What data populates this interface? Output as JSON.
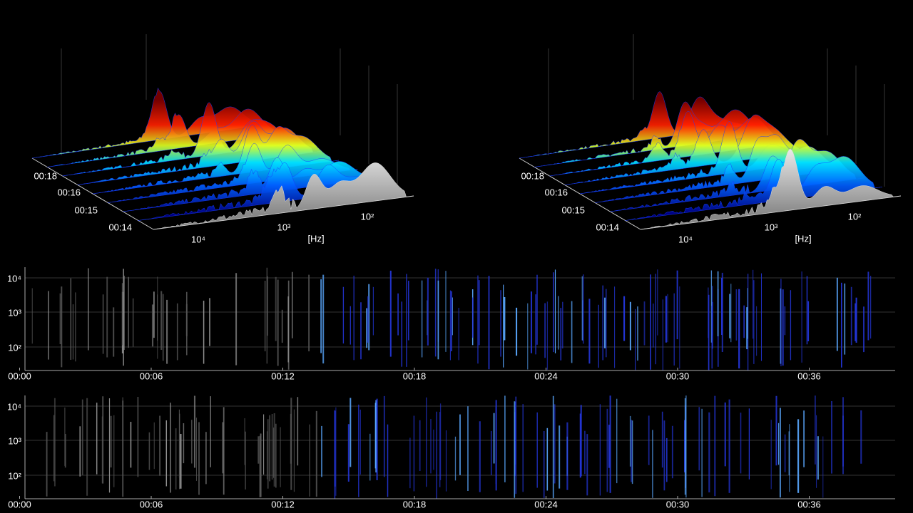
{
  "waterfalls": [
    {
      "time_labels": [
        "00:18",
        "00:16",
        "00:15",
        "00:14"
      ],
      "freq_labels": [
        "10⁴",
        "10³",
        "10²"
      ],
      "unit": "[Hz]"
    },
    {
      "time_labels": [
        "00:18",
        "00:16",
        "00:15",
        "00:14"
      ],
      "freq_labels": [
        "10⁴",
        "10³",
        "10²"
      ],
      "unit": "[Hz]"
    }
  ],
  "spectrograms": [
    {
      "y_labels": [
        "10⁴",
        "10³",
        "10²"
      ],
      "x_labels": [
        "00:00",
        "00:06",
        "00:12",
        "00:18",
        "00:24",
        "00:30",
        "00:36"
      ]
    },
    {
      "y_labels": [
        "10⁴",
        "10³",
        "10²"
      ],
      "x_labels": [
        "00:00",
        "00:06",
        "00:12",
        "00:18",
        "00:24",
        "00:30",
        "00:36"
      ]
    }
  ]
}
